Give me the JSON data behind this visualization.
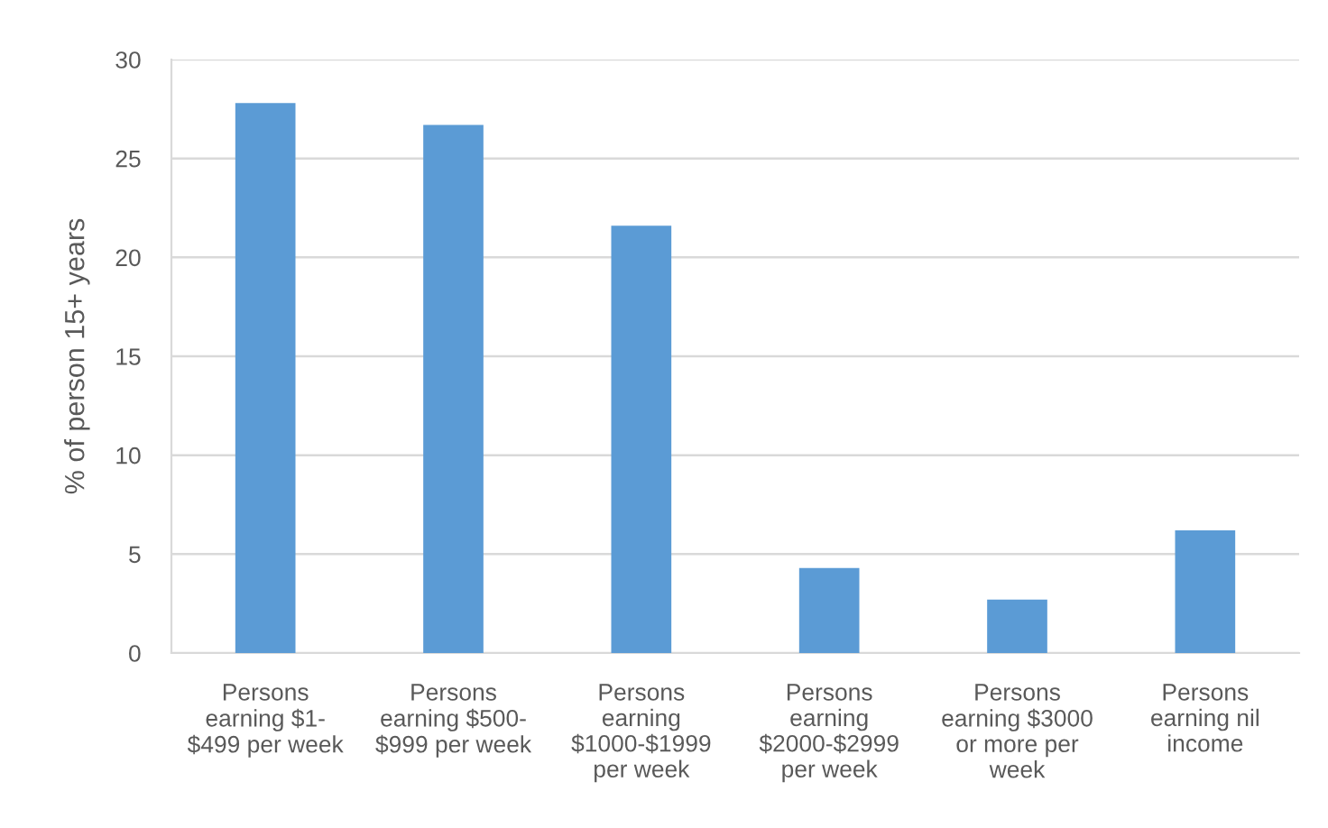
{
  "chart_data": {
    "type": "bar",
    "ylabel": "% of person 15+ years",
    "categories": [
      "Persons earning $1-$499 per week",
      "Persons earning $500-$999 per week",
      "Persons earning $1000-$1999 per week",
      "Persons earning $2000-$2999 per week",
      "Persons earning $3000 or more per week",
      "Persons earning nil income"
    ],
    "values": [
      27.8,
      26.7,
      21.6,
      4.3,
      2.7,
      6.2
    ],
    "color": "#5b9bd5",
    "ylim": [
      0,
      30
    ],
    "yticks": [
      0,
      5,
      10,
      15,
      20,
      25,
      30
    ],
    "grid": "y",
    "legend": false
  }
}
